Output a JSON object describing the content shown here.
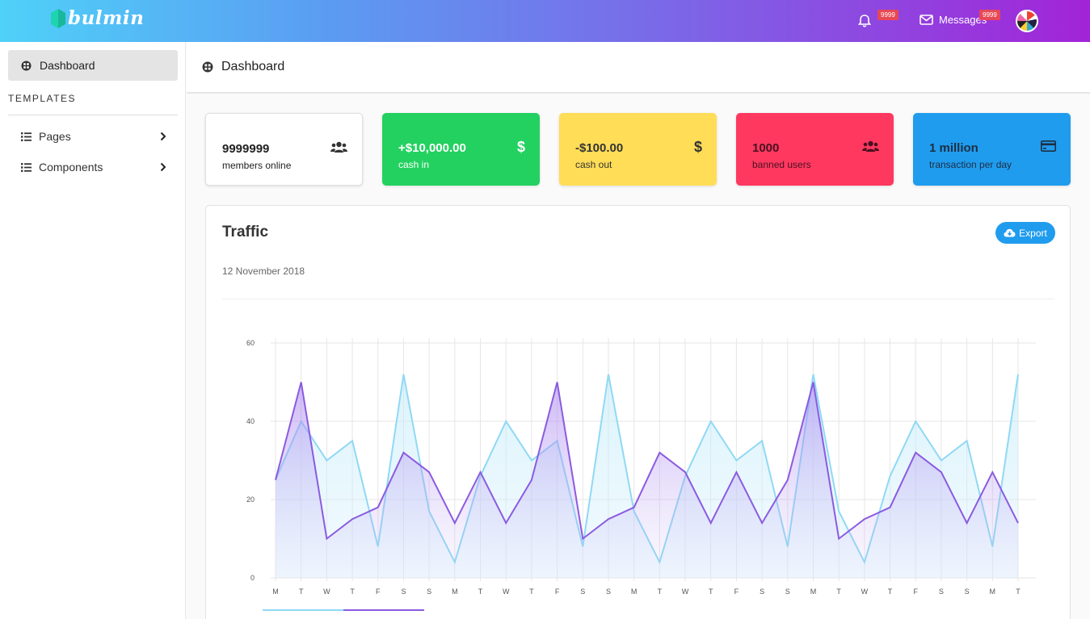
{
  "brand": {
    "name": "bulmin"
  },
  "navbar": {
    "notifications_badge": "9999",
    "messages_label": "Messages",
    "messages_badge": "9999"
  },
  "sidebar": {
    "active_item": "Dashboard",
    "section_heading": "TEMPLATES",
    "items": [
      {
        "label": "Pages",
        "icon": "list-icon"
      },
      {
        "label": "Components",
        "icon": "list-icon"
      }
    ]
  },
  "page_header": {
    "title": "Dashboard"
  },
  "stats": [
    {
      "value": "9999999",
      "label": "members online",
      "icon": "users-icon"
    },
    {
      "value": "+$10,000.00",
      "label": "cash in",
      "icon": "dollar-icon"
    },
    {
      "value": "-$100.00",
      "label": "cash out",
      "icon": "dollar-icon"
    },
    {
      "value": "1000",
      "label": "banned users",
      "icon": "users-icon"
    },
    {
      "value": "1 million",
      "label": "transaction per day",
      "icon": "credit-card-icon"
    }
  ],
  "traffic": {
    "title": "Traffic",
    "date": "12 November 2018",
    "export_label": "Export"
  },
  "colors": {
    "green": "#23d160",
    "yellow": "#ffdd57",
    "red": "#ff3860",
    "blue": "#209cee",
    "series_light": "#8fd9f5",
    "series_purple": "#8b5be0"
  },
  "chart_data": {
    "type": "area",
    "categories": [
      "M",
      "T",
      "W",
      "T",
      "F",
      "S",
      "S",
      "M",
      "T",
      "W",
      "T",
      "F",
      "S",
      "S",
      "M",
      "T",
      "W",
      "T",
      "F",
      "S",
      "S",
      "M",
      "T",
      "W",
      "T",
      "F",
      "S",
      "S",
      "M",
      "T"
    ],
    "ylim": [
      0,
      60
    ],
    "yticks": [
      0,
      20,
      40,
      60
    ],
    "grid": true,
    "series": [
      {
        "color": "#8fd9f5",
        "values": [
          25,
          40,
          30,
          35,
          8,
          52,
          17,
          4,
          26,
          40,
          30,
          35,
          8,
          52,
          17,
          4,
          26,
          40,
          30,
          35,
          8,
          52,
          17,
          4,
          26,
          40,
          30,
          35,
          8,
          52
        ]
      },
      {
        "color": "#8b5be0",
        "values": [
          25,
          50,
          10,
          15,
          18,
          32,
          27,
          14,
          27,
          14,
          25,
          50,
          10,
          15,
          18,
          32,
          27,
          14,
          27,
          14,
          25,
          50,
          10,
          15,
          18,
          32,
          27,
          14,
          27,
          14
        ]
      }
    ]
  }
}
